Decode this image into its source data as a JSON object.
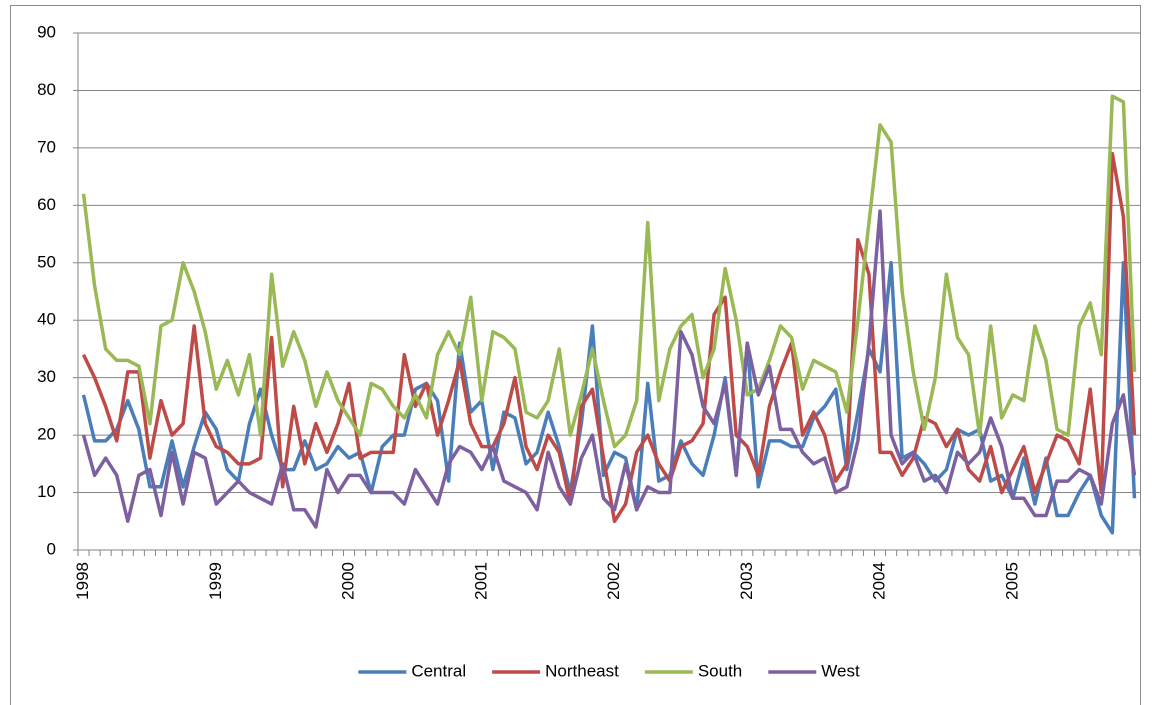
{
  "chart_data": {
    "type": "line",
    "categories": [
      "1998",
      null,
      null,
      null,
      null,
      null,
      null,
      null,
      null,
      null,
      null,
      null,
      "1999",
      null,
      null,
      null,
      null,
      null,
      null,
      null,
      null,
      null,
      null,
      null,
      "2000",
      null,
      null,
      null,
      null,
      null,
      null,
      null,
      null,
      null,
      null,
      null,
      "2001",
      null,
      null,
      null,
      null,
      null,
      null,
      null,
      null,
      null,
      null,
      null,
      "2002",
      null,
      null,
      null,
      null,
      null,
      null,
      null,
      null,
      null,
      null,
      null,
      "2003",
      null,
      null,
      null,
      null,
      null,
      null,
      null,
      null,
      null,
      null,
      null,
      "2004",
      null,
      null,
      null,
      null,
      null,
      null,
      null,
      null,
      null,
      null,
      null,
      "2005",
      null,
      null,
      null,
      null,
      null,
      null,
      null,
      null,
      null,
      null,
      null
    ],
    "series": [
      {
        "name": "Central",
        "color": "#4a7ebb",
        "values": [
          27,
          19,
          19,
          21,
          26,
          21,
          11,
          11,
          19,
          11,
          18,
          24,
          21,
          14,
          12,
          22,
          28,
          20,
          14,
          14,
          19,
          14,
          15,
          18,
          16,
          17,
          10,
          18,
          20,
          20,
          28,
          29,
          26,
          12,
          36,
          24,
          26,
          14,
          24,
          23,
          15,
          17,
          24,
          18,
          10,
          22,
          39,
          13,
          17,
          16,
          7,
          29,
          12,
          13,
          19,
          15,
          13,
          20,
          30,
          13,
          36,
          11,
          19,
          19,
          18,
          18,
          23,
          25,
          28,
          14,
          24,
          35,
          31,
          50,
          16,
          17,
          15,
          12,
          14,
          21,
          20,
          21,
          12,
          13,
          9,
          16,
          8,
          16,
          6,
          6,
          10,
          13,
          6,
          3,
          50,
          9
        ]
      },
      {
        "name": "Northeast",
        "color": "#be4b48",
        "values": [
          34,
          30,
          25,
          19,
          31,
          31,
          16,
          26,
          20,
          22,
          39,
          22,
          18,
          17,
          15,
          15,
          16,
          37,
          11,
          25,
          15,
          22,
          17,
          22,
          29,
          16,
          17,
          17,
          17,
          34,
          25,
          29,
          20,
          26,
          33,
          22,
          18,
          18,
          22,
          30,
          18,
          14,
          20,
          17,
          8,
          25,
          28,
          16,
          5,
          8,
          17,
          20,
          15,
          12,
          18,
          19,
          22,
          41,
          44,
          20,
          18,
          13,
          25,
          31,
          36,
          20,
          24,
          20,
          12,
          15,
          54,
          48,
          17,
          17,
          13,
          16,
          23,
          22,
          18,
          21,
          14,
          12,
          18,
          10,
          14,
          18,
          10,
          15,
          20,
          19,
          15,
          28,
          10,
          69,
          58,
          20
        ]
      },
      {
        "name": "South",
        "color": "#98b954",
        "values": [
          62,
          46,
          35,
          33,
          33,
          32,
          22,
          39,
          40,
          50,
          45,
          38,
          28,
          33,
          27,
          34,
          20,
          48,
          32,
          38,
          33,
          25,
          31,
          26,
          23,
          20,
          29,
          28,
          25,
          23,
          27,
          23,
          34,
          38,
          34,
          44,
          26,
          38,
          37,
          35,
          24,
          23,
          26,
          35,
          20,
          27,
          35,
          26,
          18,
          20,
          26,
          57,
          26,
          35,
          39,
          41,
          30,
          35,
          49,
          40,
          27,
          28,
          33,
          39,
          37,
          28,
          33,
          32,
          31,
          24,
          40,
          57,
          74,
          71,
          45,
          31,
          21,
          30,
          48,
          37,
          34,
          20,
          39,
          23,
          27,
          26,
          39,
          33,
          21,
          20,
          39,
          43,
          34,
          79,
          78,
          31
        ]
      },
      {
        "name": "West",
        "color": "#7d60a0",
        "values": [
          20,
          13,
          16,
          13,
          5,
          13,
          14,
          6,
          17,
          8,
          17,
          16,
          8,
          10,
          12,
          10,
          9,
          8,
          15,
          7,
          7,
          4,
          14,
          10,
          13,
          13,
          10,
          10,
          10,
          8,
          14,
          11,
          8,
          15,
          18,
          17,
          14,
          18,
          12,
          11,
          10,
          7,
          17,
          11,
          8,
          16,
          20,
          9,
          7,
          15,
          7,
          11,
          10,
          10,
          38,
          34,
          25,
          22,
          29,
          13,
          36,
          27,
          32,
          21,
          21,
          17,
          15,
          16,
          10,
          11,
          19,
          36,
          59,
          20,
          15,
          17,
          12,
          13,
          10,
          17,
          15,
          17,
          23,
          18,
          9,
          9,
          6,
          6,
          12,
          12,
          14,
          13,
          8,
          22,
          27,
          13
        ]
      }
    ],
    "ylim": [
      0,
      90
    ],
    "yticks": [
      0,
      10,
      20,
      30,
      40,
      50,
      60,
      70,
      80,
      90
    ],
    "grid": true,
    "legend": "bottom"
  }
}
